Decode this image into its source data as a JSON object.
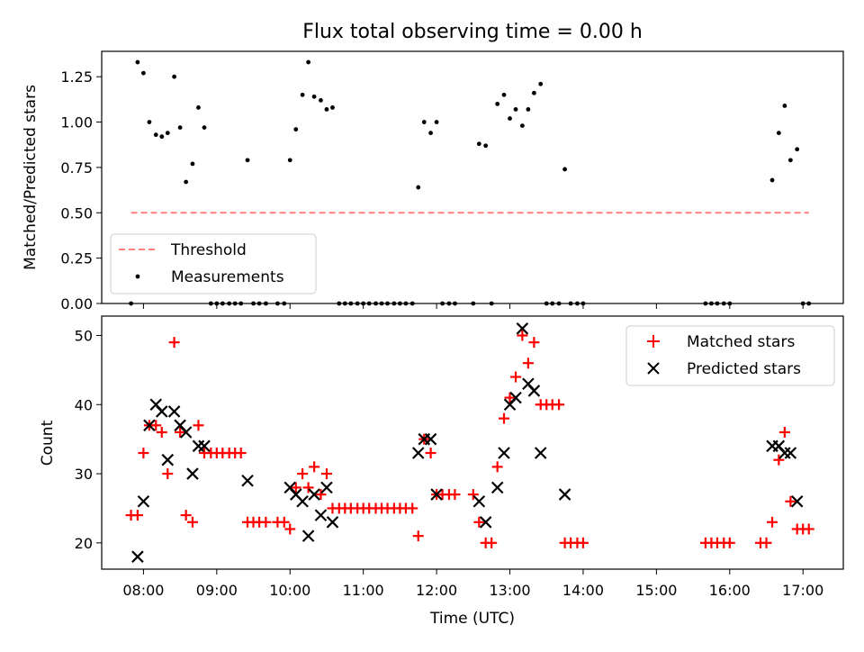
{
  "title": "Flux total observing time = 0.00 h",
  "chart_data": [
    {
      "id": "ratio",
      "type": "scatter",
      "ylabel": "Matched/Predicted stars",
      "xlabel": "",
      "xlim": [
        7.43,
        17.55
      ],
      "ylim": [
        0.0,
        1.39
      ],
      "yticks": [
        0.0,
        0.25,
        0.5,
        0.75,
        1.0,
        1.25
      ],
      "ytick_labels": [
        "0.00",
        "0.25",
        "0.50",
        "0.75",
        "1.00",
        "1.25"
      ],
      "legend": {
        "position": "lower-left",
        "entries": [
          "Threshold",
          "Measurements"
        ]
      },
      "threshold": {
        "name": "Threshold",
        "y": 0.5,
        "x": [
          7.83,
          17.08
        ],
        "color": "#ff7f7f",
        "style": "dashed"
      },
      "measurements": {
        "name": "Measurements",
        "color": "#000000",
        "points": [
          [
            7.83,
            0.0
          ],
          [
            7.92,
            1.33
          ],
          [
            8.0,
            1.27
          ],
          [
            8.08,
            1.0
          ],
          [
            8.17,
            0.93
          ],
          [
            8.25,
            0.92
          ],
          [
            8.33,
            0.94
          ],
          [
            8.42,
            1.25
          ],
          [
            8.5,
            0.97
          ],
          [
            8.58,
            0.67
          ],
          [
            8.67,
            0.77
          ],
          [
            8.75,
            1.08
          ],
          [
            8.83,
            0.97
          ],
          [
            8.92,
            0.0
          ],
          [
            9.0,
            0.0
          ],
          [
            9.08,
            0.0
          ],
          [
            9.17,
            0.0
          ],
          [
            9.25,
            0.0
          ],
          [
            9.33,
            0.0
          ],
          [
            9.42,
            0.79
          ],
          [
            9.5,
            0.0
          ],
          [
            9.58,
            0.0
          ],
          [
            9.67,
            0.0
          ],
          [
            9.83,
            0.0
          ],
          [
            9.92,
            0.0
          ],
          [
            10.0,
            0.79
          ],
          [
            10.08,
            0.96
          ],
          [
            10.17,
            1.15
          ],
          [
            10.25,
            1.33
          ],
          [
            10.33,
            1.14
          ],
          [
            10.42,
            1.12
          ],
          [
            10.5,
            1.07
          ],
          [
            10.58,
            1.08
          ],
          [
            10.67,
            0.0
          ],
          [
            10.75,
            0.0
          ],
          [
            10.83,
            0.0
          ],
          [
            10.92,
            0.0
          ],
          [
            11.0,
            0.0
          ],
          [
            11.08,
            0.0
          ],
          [
            11.17,
            0.0
          ],
          [
            11.25,
            0.0
          ],
          [
            11.33,
            0.0
          ],
          [
            11.42,
            0.0
          ],
          [
            11.5,
            0.0
          ],
          [
            11.58,
            0.0
          ],
          [
            11.67,
            0.0
          ],
          [
            11.75,
            0.64
          ],
          [
            11.83,
            1.0
          ],
          [
            11.92,
            0.94
          ],
          [
            12.0,
            1.0
          ],
          [
            12.08,
            0.0
          ],
          [
            12.17,
            0.0
          ],
          [
            12.25,
            0.0
          ],
          [
            12.5,
            0.0
          ],
          [
            12.58,
            0.88
          ],
          [
            12.67,
            0.87
          ],
          [
            12.75,
            0.0
          ],
          [
            12.83,
            1.1
          ],
          [
            12.92,
            1.15
          ],
          [
            13.0,
            1.02
          ],
          [
            13.08,
            1.07
          ],
          [
            13.17,
            0.98
          ],
          [
            13.25,
            1.07
          ],
          [
            13.33,
            1.16
          ],
          [
            13.42,
            1.21
          ],
          [
            13.5,
            0.0
          ],
          [
            13.58,
            0.0
          ],
          [
            13.67,
            0.0
          ],
          [
            13.75,
            0.74
          ],
          [
            13.83,
            0.0
          ],
          [
            13.92,
            0.0
          ],
          [
            14.0,
            0.0
          ],
          [
            15.67,
            0.0
          ],
          [
            15.75,
            0.0
          ],
          [
            15.83,
            0.0
          ],
          [
            15.92,
            0.0
          ],
          [
            16.0,
            0.0
          ],
          [
            16.58,
            0.68
          ],
          [
            16.67,
            0.94
          ],
          [
            16.75,
            1.09
          ],
          [
            16.83,
            0.79
          ],
          [
            16.92,
            0.85
          ],
          [
            17.0,
            0.0
          ],
          [
            17.08,
            0.0
          ]
        ]
      }
    },
    {
      "id": "counts",
      "type": "scatter",
      "ylabel": "Count",
      "xlabel": "Time (UTC)",
      "xlim": [
        7.43,
        17.55
      ],
      "ylim": [
        16.2,
        52.8
      ],
      "yticks": [
        20,
        30,
        40,
        50
      ],
      "ytick_labels": [
        "20",
        "30",
        "40",
        "50"
      ],
      "xticks": [
        8,
        9,
        10,
        11,
        12,
        13,
        14,
        15,
        16,
        17
      ],
      "xtick_labels": [
        "08:00",
        "09:00",
        "10:00",
        "11:00",
        "12:00",
        "13:00",
        "14:00",
        "15:00",
        "16:00",
        "17:00"
      ],
      "legend": {
        "position": "top-right",
        "entries": [
          "Matched stars",
          "Predicted stars"
        ]
      },
      "series": [
        {
          "name": "Matched stars",
          "marker": "plus",
          "color": "#ff0000",
          "points": [
            [
              7.83,
              24
            ],
            [
              7.92,
              24
            ],
            [
              8.0,
              33
            ],
            [
              8.08,
              37
            ],
            [
              8.17,
              37
            ],
            [
              8.25,
              36
            ],
            [
              8.33,
              30
            ],
            [
              8.42,
              49
            ],
            [
              8.5,
              36
            ],
            [
              8.58,
              24
            ],
            [
              8.67,
              23
            ],
            [
              8.75,
              37
            ],
            [
              8.83,
              33
            ],
            [
              8.92,
              33
            ],
            [
              9.0,
              33
            ],
            [
              9.08,
              33
            ],
            [
              9.17,
              33
            ],
            [
              9.25,
              33
            ],
            [
              9.33,
              33
            ],
            [
              9.42,
              23
            ],
            [
              9.5,
              23
            ],
            [
              9.58,
              23
            ],
            [
              9.67,
              23
            ],
            [
              9.83,
              23
            ],
            [
              9.92,
              23
            ],
            [
              10.0,
              22
            ],
            [
              10.08,
              28
            ],
            [
              10.17,
              30
            ],
            [
              10.25,
              28
            ],
            [
              10.33,
              31
            ],
            [
              10.42,
              27
            ],
            [
              10.5,
              30
            ],
            [
              10.58,
              25
            ],
            [
              10.67,
              25
            ],
            [
              10.75,
              25
            ],
            [
              10.83,
              25
            ],
            [
              10.92,
              25
            ],
            [
              11.0,
              25
            ],
            [
              11.08,
              25
            ],
            [
              11.17,
              25
            ],
            [
              11.25,
              25
            ],
            [
              11.33,
              25
            ],
            [
              11.42,
              25
            ],
            [
              11.5,
              25
            ],
            [
              11.58,
              25
            ],
            [
              11.67,
              25
            ],
            [
              11.75,
              21
            ],
            [
              11.83,
              35
            ],
            [
              11.92,
              33
            ],
            [
              12.0,
              27
            ],
            [
              12.08,
              27
            ],
            [
              12.17,
              27
            ],
            [
              12.25,
              27
            ],
            [
              12.5,
              27
            ],
            [
              12.58,
              23
            ],
            [
              12.67,
              20
            ],
            [
              12.75,
              20
            ],
            [
              12.83,
              31
            ],
            [
              12.92,
              38
            ],
            [
              13.0,
              41
            ],
            [
              13.08,
              44
            ],
            [
              13.17,
              50
            ],
            [
              13.25,
              46
            ],
            [
              13.33,
              49
            ],
            [
              13.42,
              40
            ],
            [
              13.5,
              40
            ],
            [
              13.58,
              40
            ],
            [
              13.67,
              40
            ],
            [
              13.75,
              20
            ],
            [
              13.83,
              20
            ],
            [
              13.92,
              20
            ],
            [
              14.0,
              20
            ],
            [
              15.67,
              20
            ],
            [
              15.75,
              20
            ],
            [
              15.83,
              20
            ],
            [
              15.92,
              20
            ],
            [
              16.0,
              20
            ],
            [
              16.42,
              20
            ],
            [
              16.5,
              20
            ],
            [
              16.58,
              23
            ],
            [
              16.67,
              32
            ],
            [
              16.75,
              36
            ],
            [
              16.83,
              26
            ],
            [
              16.92,
              22
            ],
            [
              17.0,
              22
            ],
            [
              17.08,
              22
            ]
          ]
        },
        {
          "name": "Predicted stars",
          "marker": "x",
          "color": "#000000",
          "points": [
            [
              7.92,
              18
            ],
            [
              8.0,
              26
            ],
            [
              8.08,
              37
            ],
            [
              8.17,
              40
            ],
            [
              8.25,
              39
            ],
            [
              8.33,
              32
            ],
            [
              8.42,
              39
            ],
            [
              8.5,
              37
            ],
            [
              8.58,
              36
            ],
            [
              8.67,
              30
            ],
            [
              8.75,
              34
            ],
            [
              8.83,
              34
            ],
            [
              9.42,
              29
            ],
            [
              10.0,
              28
            ],
            [
              10.08,
              27
            ],
            [
              10.17,
              26
            ],
            [
              10.25,
              21
            ],
            [
              10.33,
              27
            ],
            [
              10.42,
              24
            ],
            [
              10.5,
              28
            ],
            [
              10.58,
              23
            ],
            [
              11.75,
              33
            ],
            [
              11.83,
              35
            ],
            [
              11.92,
              35
            ],
            [
              12.0,
              27
            ],
            [
              12.58,
              26
            ],
            [
              12.67,
              23
            ],
            [
              12.83,
              28
            ],
            [
              12.92,
              33
            ],
            [
              13.0,
              40
            ],
            [
              13.08,
              41
            ],
            [
              13.17,
              51
            ],
            [
              13.25,
              43
            ],
            [
              13.33,
              42
            ],
            [
              13.42,
              33
            ],
            [
              13.75,
              27
            ],
            [
              16.58,
              34
            ],
            [
              16.67,
              34
            ],
            [
              16.75,
              33
            ],
            [
              16.83,
              33
            ],
            [
              16.92,
              26
            ]
          ]
        }
      ]
    }
  ]
}
